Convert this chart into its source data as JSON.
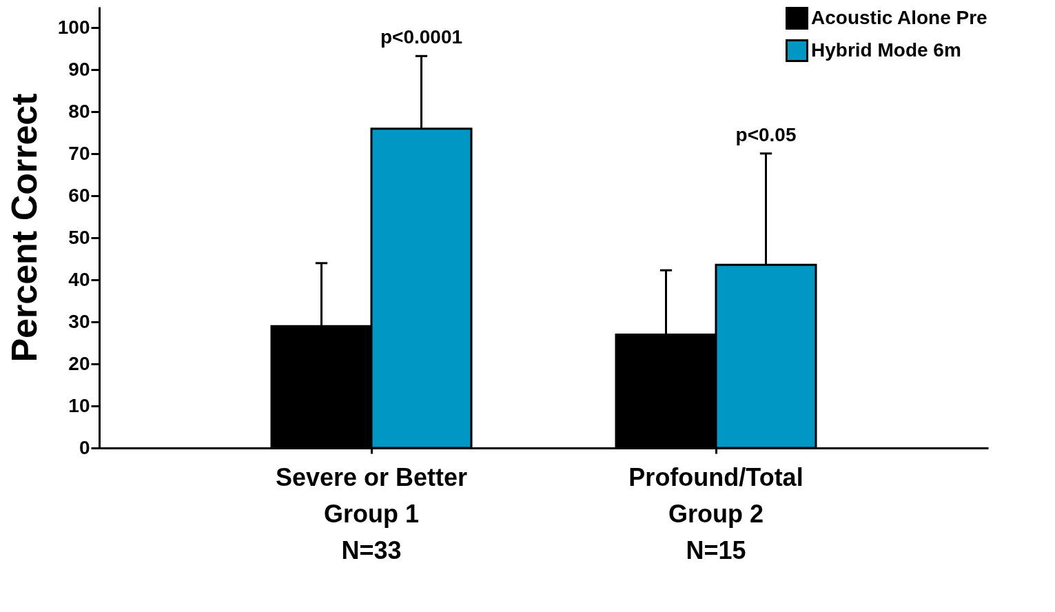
{
  "chart_data": {
    "type": "bar",
    "ylabel": "Percent Correct",
    "categories": [
      "Severe or Better\nGroup 1\nN=33",
      "Profound/Total\nGroup 2\nN=15"
    ],
    "series": [
      {
        "name": "Acoustic Alone Pre",
        "color": "#000000",
        "values": [
          29,
          27
        ],
        "errors": [
          [
            29,
            44
          ],
          [
            27,
            42.3
          ]
        ]
      },
      {
        "name": "Hybrid Mode 6m",
        "color": "#0097c4",
        "values": [
          76,
          43.6
        ],
        "errors": [
          [
            76,
            93.3
          ],
          [
            43.6,
            70.1
          ]
        ]
      }
    ],
    "ylim": [
      0,
      105
    ],
    "yticks": [
      0,
      10,
      20,
      30,
      40,
      50,
      60,
      70,
      80,
      90,
      100
    ],
    "grid": false,
    "legend": "top right",
    "annotations": [
      "p<0.0001",
      "p<0.05"
    ]
  }
}
